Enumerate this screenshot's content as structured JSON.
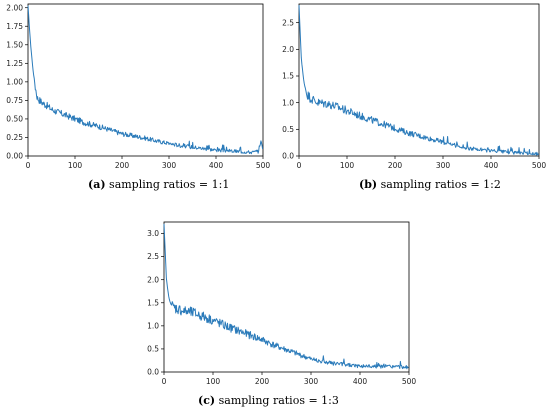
{
  "figure": {
    "panels": [
      {
        "id": "a",
        "label": "(a)",
        "caption": "sampling ratios = 1:1"
      },
      {
        "id": "b",
        "label": "(b)",
        "caption": "sampling ratios = 1:2"
      },
      {
        "id": "c",
        "label": "(c)",
        "caption": "sampling ratios = 1:3"
      }
    ]
  },
  "colors": {
    "line": "#2b7bba",
    "axis": "#000000"
  },
  "chart_data": [
    {
      "type": "line",
      "xlim": [
        0,
        500
      ],
      "ylim": [
        0,
        2.05
      ],
      "xticks": [
        0,
        100,
        200,
        300,
        400,
        500
      ],
      "yticks": [
        0.0,
        0.25,
        0.5,
        0.75,
        1.0,
        1.25,
        1.5,
        1.75,
        2.0
      ],
      "ytick_labels": [
        "0.00",
        "0.25",
        "0.50",
        "0.75",
        "1.00",
        "1.25",
        "1.50",
        "1.75",
        "2.00"
      ],
      "x": [
        0,
        5,
        10,
        15,
        20,
        30,
        40,
        50,
        60,
        80,
        100,
        120,
        150,
        175,
        200,
        225,
        250,
        275,
        300,
        325,
        350,
        375,
        400,
        425,
        450,
        475,
        490,
        495,
        500
      ],
      "y": [
        2.02,
        1.55,
        1.2,
        0.95,
        0.78,
        0.72,
        0.68,
        0.63,
        0.6,
        0.55,
        0.5,
        0.45,
        0.4,
        0.35,
        0.3,
        0.27,
        0.24,
        0.2,
        0.17,
        0.14,
        0.12,
        0.1,
        0.08,
        0.07,
        0.06,
        0.05,
        0.06,
        0.2,
        0.1
      ]
    },
    {
      "type": "line",
      "xlim": [
        0,
        500
      ],
      "ylim": [
        0,
        2.85
      ],
      "xticks": [
        0,
        100,
        200,
        300,
        400,
        500
      ],
      "yticks": [
        0.0,
        0.5,
        1.0,
        1.5,
        2.0,
        2.5
      ],
      "ytick_labels": [
        "0.0",
        "0.5",
        "1.0",
        "1.5",
        "2.0",
        "2.5"
      ],
      "x": [
        0,
        5,
        10,
        15,
        20,
        30,
        40,
        60,
        80,
        100,
        125,
        150,
        175,
        200,
        225,
        250,
        275,
        300,
        325,
        350,
        375,
        400,
        425,
        450,
        475,
        500
      ],
      "y": [
        2.82,
        1.8,
        1.4,
        1.2,
        1.12,
        1.05,
        1.0,
        0.98,
        0.92,
        0.85,
        0.76,
        0.68,
        0.6,
        0.52,
        0.44,
        0.38,
        0.32,
        0.26,
        0.2,
        0.15,
        0.12,
        0.1,
        0.08,
        0.06,
        0.05,
        0.04
      ]
    },
    {
      "type": "line",
      "xlim": [
        0,
        500
      ],
      "ylim": [
        0,
        3.25
      ],
      "xticks": [
        0,
        100,
        200,
        300,
        400,
        500
      ],
      "yticks": [
        0.0,
        0.5,
        1.0,
        1.5,
        2.0,
        2.5,
        3.0
      ],
      "ytick_labels": [
        "0.0",
        "0.5",
        "1.0",
        "1.5",
        "2.0",
        "2.5",
        "3.0"
      ],
      "x": [
        0,
        5,
        10,
        15,
        20,
        30,
        40,
        60,
        80,
        100,
        125,
        150,
        175,
        200,
        225,
        250,
        275,
        300,
        325,
        350,
        375,
        400,
        425,
        450,
        475,
        500
      ],
      "y": [
        3.2,
        2.0,
        1.6,
        1.45,
        1.4,
        1.36,
        1.32,
        1.28,
        1.2,
        1.12,
        1.0,
        0.9,
        0.8,
        0.7,
        0.58,
        0.48,
        0.38,
        0.28,
        0.22,
        0.18,
        0.15,
        0.13,
        0.12,
        0.12,
        0.11,
        0.1
      ]
    }
  ]
}
